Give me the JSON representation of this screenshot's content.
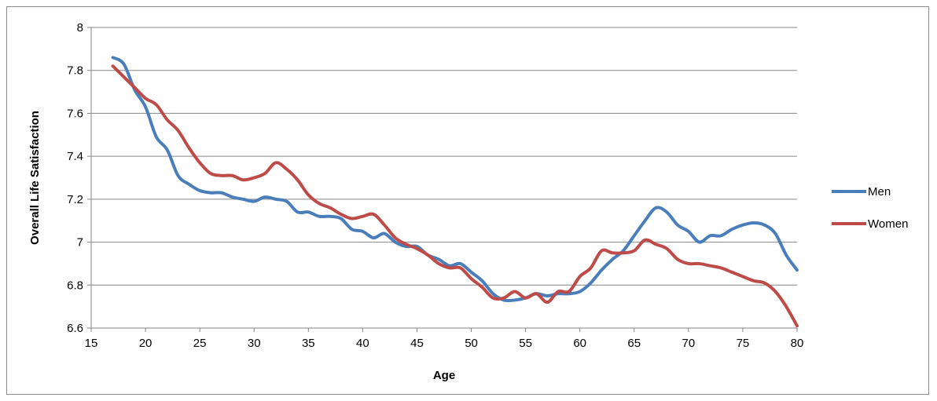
{
  "chart_data": {
    "type": "line",
    "xlabel": "Age",
    "ylabel": "Overall Life Satisfaction",
    "xlim": [
      15,
      80
    ],
    "ylim": [
      6.6,
      8
    ],
    "x_ticks": [
      "15",
      "20",
      "25",
      "30",
      "35",
      "40",
      "45",
      "50",
      "55",
      "60",
      "65",
      "70",
      "75",
      "80"
    ],
    "y_ticks": [
      "6.6",
      "6.8",
      "7",
      "7.2",
      "7.4",
      "7.6",
      "7.8",
      "8"
    ],
    "grid": "horizontal",
    "legend_position": "right",
    "series": [
      {
        "name": "Men",
        "color": "#4a7ebb",
        "x": [
          17,
          18,
          19,
          20,
          21,
          22,
          23,
          24,
          25,
          26,
          27,
          28,
          29,
          30,
          31,
          32,
          33,
          34,
          35,
          36,
          37,
          38,
          39,
          40,
          41,
          42,
          43,
          44,
          45,
          46,
          47,
          48,
          49,
          50,
          51,
          52,
          53,
          54,
          55,
          56,
          57,
          58,
          59,
          60,
          61,
          62,
          63,
          64,
          65,
          66,
          67,
          68,
          69,
          70,
          71,
          72,
          73,
          74,
          75,
          76,
          77,
          78,
          79,
          80
        ],
        "values": [
          7.86,
          7.83,
          7.71,
          7.63,
          7.49,
          7.43,
          7.31,
          7.27,
          7.24,
          7.23,
          7.23,
          7.21,
          7.2,
          7.19,
          7.21,
          7.2,
          7.19,
          7.14,
          7.14,
          7.12,
          7.12,
          7.11,
          7.06,
          7.05,
          7.02,
          7.04,
          7.0,
          6.98,
          6.98,
          6.94,
          6.92,
          6.89,
          6.9,
          6.86,
          6.82,
          6.76,
          6.73,
          6.73,
          6.74,
          6.76,
          6.75,
          6.76,
          6.76,
          6.77,
          6.81,
          6.87,
          6.92,
          6.96,
          7.03,
          7.1,
          7.16,
          7.14,
          7.08,
          7.05,
          7.0,
          7.03,
          7.03,
          7.06,
          7.08,
          7.09,
          7.08,
          7.04,
          6.94,
          6.87
        ]
      },
      {
        "name": "Women",
        "color": "#be4b48",
        "x": [
          17,
          18,
          19,
          20,
          21,
          22,
          23,
          24,
          25,
          26,
          27,
          28,
          29,
          30,
          31,
          32,
          33,
          34,
          35,
          36,
          37,
          38,
          39,
          40,
          41,
          42,
          43,
          44,
          45,
          46,
          47,
          48,
          49,
          50,
          51,
          52,
          53,
          54,
          55,
          56,
          57,
          58,
          59,
          60,
          61,
          62,
          63,
          64,
          65,
          66,
          67,
          68,
          69,
          70,
          71,
          72,
          73,
          74,
          75,
          76,
          77,
          78,
          79,
          80
        ],
        "values": [
          7.82,
          7.77,
          7.72,
          7.67,
          7.64,
          7.57,
          7.52,
          7.44,
          7.37,
          7.32,
          7.31,
          7.31,
          7.29,
          7.3,
          7.32,
          7.37,
          7.34,
          7.29,
          7.22,
          7.18,
          7.16,
          7.13,
          7.11,
          7.12,
          7.13,
          7.08,
          7.02,
          6.99,
          6.97,
          6.94,
          6.9,
          6.88,
          6.88,
          6.83,
          6.79,
          6.74,
          6.74,
          6.77,
          6.74,
          6.76,
          6.72,
          6.77,
          6.77,
          6.84,
          6.88,
          6.96,
          6.95,
          6.95,
          6.96,
          7.01,
          6.99,
          6.97,
          6.92,
          6.9,
          6.9,
          6.89,
          6.88,
          6.86,
          6.84,
          6.82,
          6.81,
          6.77,
          6.7,
          6.61
        ]
      }
    ]
  }
}
